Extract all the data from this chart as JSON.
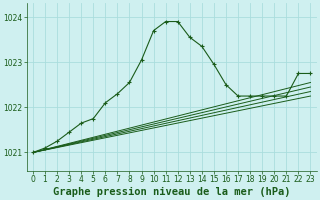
{
  "title": "Graphe pression niveau de la mer (hPa)",
  "bg_color": "#cff0f0",
  "grid_color": "#aadddd",
  "line_color": "#1a5c1a",
  "xlim": [
    -0.5,
    23.5
  ],
  "ylim": [
    1020.6,
    1024.3
  ],
  "yticks": [
    1021,
    1022,
    1023,
    1024
  ],
  "xticks": [
    0,
    1,
    2,
    3,
    4,
    5,
    6,
    7,
    8,
    9,
    10,
    11,
    12,
    13,
    14,
    15,
    16,
    17,
    18,
    19,
    20,
    21,
    22,
    23
  ],
  "main_line": [
    [
      0,
      1021.0
    ],
    [
      1,
      1021.1
    ],
    [
      2,
      1021.25
    ],
    [
      3,
      1021.45
    ],
    [
      4,
      1021.65
    ],
    [
      5,
      1021.75
    ],
    [
      6,
      1022.1
    ],
    [
      7,
      1022.3
    ],
    [
      8,
      1022.55
    ],
    [
      9,
      1023.05
    ],
    [
      10,
      1023.7
    ],
    [
      11,
      1023.9
    ],
    [
      12,
      1023.9
    ],
    [
      13,
      1023.55
    ],
    [
      14,
      1023.35
    ],
    [
      15,
      1022.95
    ],
    [
      16,
      1022.5
    ],
    [
      17,
      1022.25
    ],
    [
      18,
      1022.25
    ],
    [
      19,
      1022.25
    ],
    [
      20,
      1022.25
    ],
    [
      21,
      1022.25
    ],
    [
      22,
      1022.75
    ],
    [
      23,
      1022.75
    ]
  ],
  "extra_lines": [
    [
      [
        0,
        1021.0
      ],
      [
        23,
        1022.25
      ]
    ],
    [
      [
        0,
        1021.0
      ],
      [
        23,
        1022.35
      ]
    ],
    [
      [
        0,
        1021.0
      ],
      [
        23,
        1022.45
      ]
    ],
    [
      [
        0,
        1021.0
      ],
      [
        23,
        1022.55
      ]
    ]
  ],
  "title_fontsize": 7.5,
  "tick_fontsize": 5.5
}
